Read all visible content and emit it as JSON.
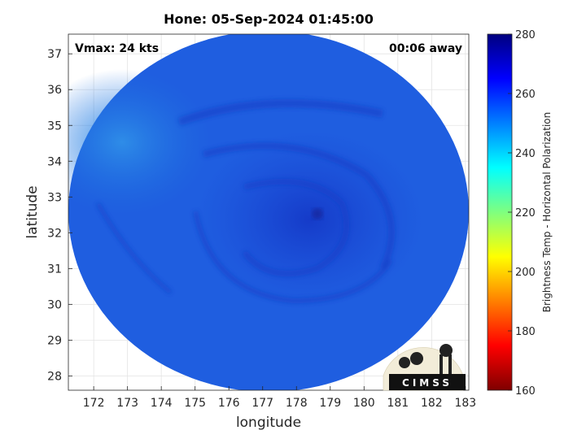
{
  "title": "Hone: 05-Sep-2024 01:45:00",
  "annotations": {
    "vmax": "Vmax: 24 kts",
    "time_away": "00:06 away"
  },
  "axes": {
    "xlabel": "longitude",
    "ylabel": "latitude",
    "xlim": [
      171.25,
      183.1
    ],
    "ylim": [
      27.6,
      37.55
    ],
    "xticks": [
      172,
      173,
      174,
      175,
      176,
      177,
      178,
      179,
      180,
      181,
      182,
      183
    ],
    "yticks": [
      28,
      29,
      30,
      31,
      32,
      33,
      34,
      35,
      36,
      37
    ],
    "grid": true
  },
  "colorbar": {
    "label": "Brightness Temp - Horizontal Polarization",
    "range": [
      160,
      280
    ],
    "ticks": [
      160,
      180,
      200,
      220,
      240,
      260,
      280
    ],
    "colormap": "jet"
  },
  "logo": {
    "text": "CIMSS"
  },
  "chart_data": {
    "type": "heatmap",
    "title": "Hone: 05-Sep-2024 01:45:00",
    "xlabel": "longitude",
    "ylabel": "latitude",
    "xlim": [
      171.25,
      183.1
    ],
    "ylim": [
      27.6,
      37.55
    ],
    "colorbar_label": "Brightness Temp - Horizontal Polarization",
    "value_range": [
      160,
      280
    ],
    "swath_center": [
      177.35,
      32.55
    ],
    "storm_center": [
      178.45,
      32.45
    ],
    "background_value": 262,
    "warm_region_nw_value": 243,
    "rainband_value": 268
  }
}
